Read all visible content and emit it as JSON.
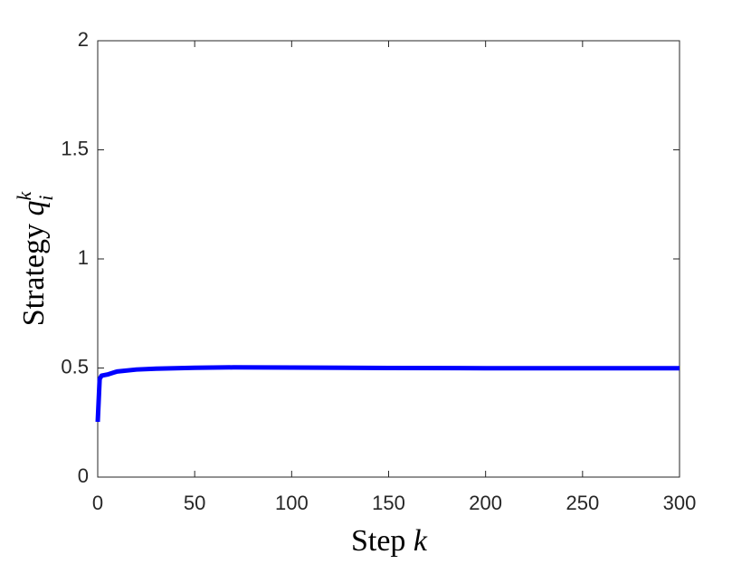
{
  "chart_data": {
    "type": "line",
    "xlabel": {
      "text": "Step",
      "var": "k"
    },
    "ylabel": {
      "text": "Strategy",
      "var": "q",
      "sub": "i",
      "sup": "k"
    },
    "x": [
      0,
      1,
      2,
      5,
      10,
      20,
      30,
      50,
      70,
      100,
      150,
      200,
      250,
      300
    ],
    "series": [
      {
        "color": "#0000ff",
        "values": [
          0.253,
          0.45,
          0.465,
          0.47,
          0.484,
          0.493,
          0.497,
          0.501,
          0.503,
          0.502,
          0.5,
          0.499,
          0.499,
          0.499
        ]
      }
    ],
    "xlim": [
      0,
      300
    ],
    "ylim": [
      0,
      2
    ],
    "xticks": [
      0,
      50,
      100,
      150,
      200,
      250,
      300
    ],
    "yticks": [
      0,
      0.5,
      1,
      1.5,
      2
    ]
  }
}
